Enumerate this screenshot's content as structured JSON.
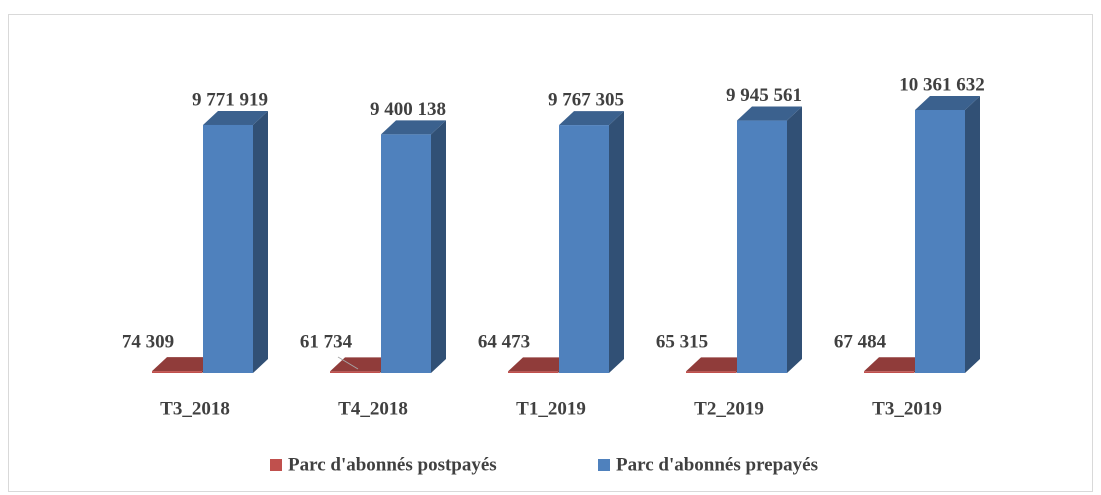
{
  "chart_data": {
    "type": "bar3d",
    "categories": [
      "T3_2018",
      "T4_2018",
      "T1_2019",
      "T2_2019",
      "T3_2019"
    ],
    "series": [
      {
        "name": "Parc d'abonnés postpayés",
        "color": "#C0504D",
        "values": [
          74309,
          61734,
          64473,
          65315,
          67484
        ],
        "value_labels": [
          "74 309",
          "61 734",
          "64 473",
          "65 315",
          "67 484"
        ]
      },
      {
        "name": "Parc d'abonnés prepayés",
        "color": "#4F81BD",
        "values": [
          9771919,
          9400138,
          9767305,
          9945561,
          10361632
        ],
        "value_labels": [
          "9 771 919",
          "9 400 138",
          "9 767 305",
          "9 945 561",
          "10 361 632"
        ]
      }
    ],
    "legend": "bottom"
  }
}
